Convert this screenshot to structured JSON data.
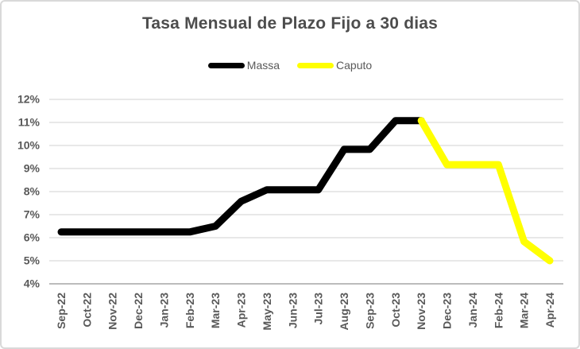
{
  "window": {
    "background": "#ffffff",
    "border_color": "#d9d9d9"
  },
  "chart_data": {
    "type": "line",
    "title": "Tasa Mensual de Plazo Fijo a 30 dias",
    "xlabel": "",
    "ylabel": "",
    "categories": [
      "Sep-22",
      "Oct-22",
      "Nov-22",
      "Dec-22",
      "Jan-23",
      "Feb-23",
      "Mar-23",
      "Apr-23",
      "May-23",
      "Jun-23",
      "Jul-23",
      "Aug-23",
      "Sep-23",
      "Oct-23",
      "Nov-23",
      "Dec-23",
      "Jan-24",
      "Feb-24",
      "Mar-24",
      "Apr-24"
    ],
    "series": [
      {
        "name": "Massa",
        "color": "#000000",
        "values": [
          6.25,
          6.25,
          6.25,
          6.25,
          6.25,
          6.25,
          6.5,
          7.58,
          8.08,
          8.08,
          8.08,
          9.83,
          9.83,
          11.08,
          11.08,
          null,
          null,
          null,
          null,
          null
        ]
      },
      {
        "name": "Caputo",
        "color": "#ffff00",
        "values": [
          null,
          null,
          null,
          null,
          null,
          null,
          null,
          null,
          null,
          null,
          null,
          null,
          null,
          null,
          11.08,
          9.17,
          9.17,
          9.17,
          5.83,
          5.0
        ]
      }
    ],
    "ylim": [
      4,
      12
    ],
    "y_tick_step": 1,
    "y_ticks": [
      "12%",
      "11%",
      "10%",
      "9%",
      "8%",
      "7%",
      "6%",
      "5%",
      "4%"
    ],
    "grid": true,
    "legend_position": "top",
    "x_tick_rotation": 90,
    "colors": {
      "tick_label": "#595959",
      "gridline": "#d9d9d9",
      "axis_line": "#a6a6a6",
      "title": "#4d4d4d"
    }
  }
}
